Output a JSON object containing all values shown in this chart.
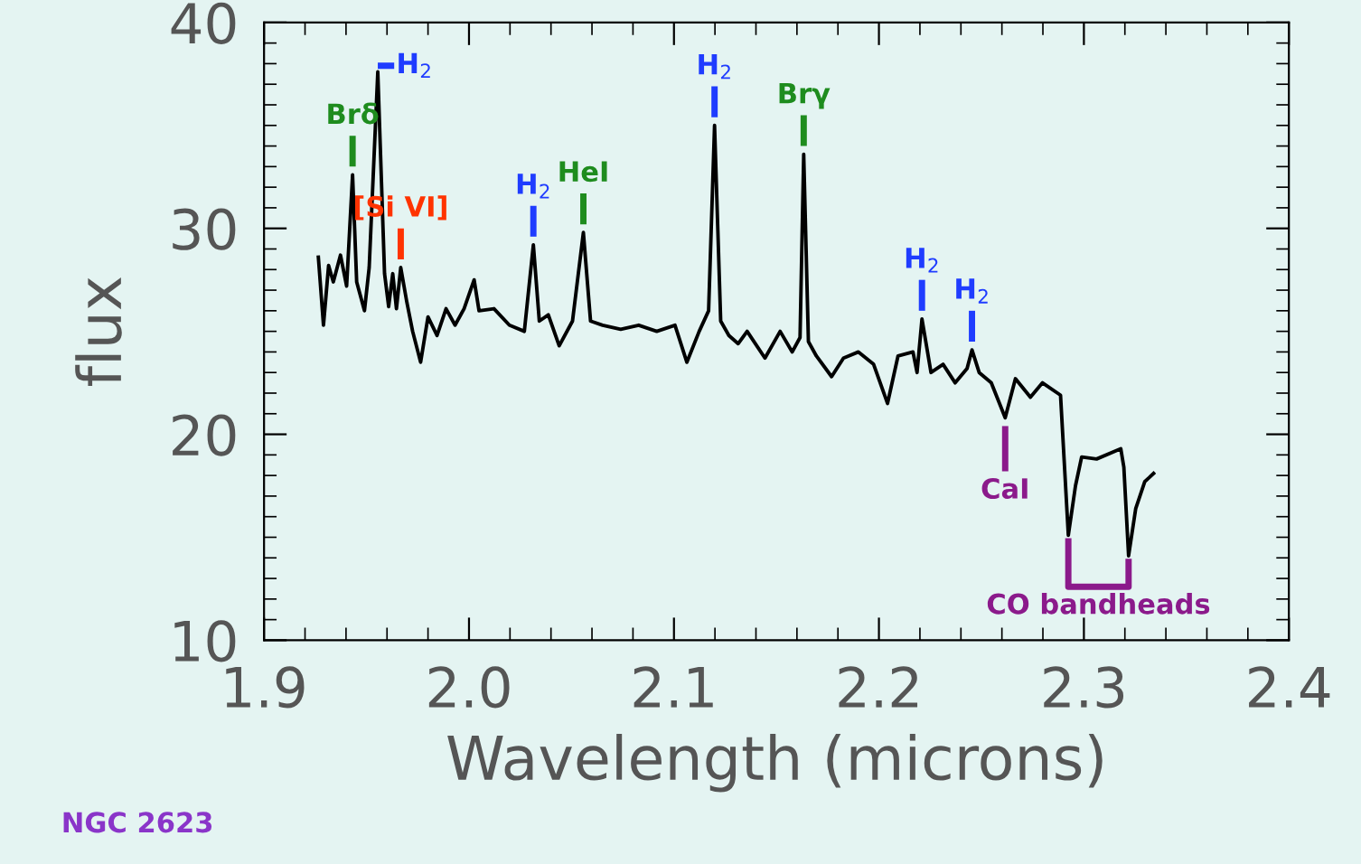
{
  "chart_data": {
    "type": "line",
    "xlabel": "Wavelength (microns)",
    "ylabel": "flux",
    "xlim": [
      1.9,
      2.4
    ],
    "xticks": [
      {
        "value": 1.9,
        "label": "1.9"
      },
      {
        "value": 2.0,
        "label": "2.0"
      },
      {
        "value": 2.1,
        "label": "2.1"
      },
      {
        "value": 2.2,
        "label": "2.2"
      },
      {
        "value": 2.3,
        "label": "2.3"
      },
      {
        "value": 2.4,
        "label": "2.4"
      }
    ],
    "ylim": [
      10,
      40
    ],
    "yticks": [
      10,
      20,
      30,
      40
    ],
    "grid": false,
    "legend": false,
    "marker": "none",
    "line_style": "solid",
    "series": [
      {
        "color": "#000000",
        "x": [
          1.9265,
          1.929,
          1.9315,
          1.9338,
          1.9373,
          1.9403,
          1.9432,
          1.9452,
          1.949,
          1.9513,
          1.9555,
          1.9588,
          1.9608,
          1.9628,
          1.9646,
          1.9667,
          1.9697,
          1.9725,
          1.9764,
          1.98,
          1.9844,
          1.9888,
          1.9932,
          1.9976,
          2.0025,
          2.0049,
          2.0122,
          2.0197,
          2.027,
          2.0314,
          2.0343,
          2.0387,
          2.044,
          2.0505,
          2.0558,
          2.0593,
          2.0652,
          2.074,
          2.0828,
          2.0916,
          2.1005,
          2.1063,
          2.1123,
          2.1169,
          2.1198,
          2.1228,
          2.1268,
          2.1313,
          2.1357,
          2.1444,
          2.1518,
          2.1577,
          2.1615,
          2.1633,
          2.1656,
          2.1695,
          2.1769,
          2.1827,
          2.19,
          2.1974,
          2.2042,
          2.2093,
          2.2166,
          2.2186,
          2.221,
          2.2254,
          2.2313,
          2.2372,
          2.243,
          2.2454,
          2.2489,
          2.2548,
          2.2616,
          2.2666,
          2.2739,
          2.2798,
          2.2886,
          2.2924,
          2.2959,
          2.2989,
          2.3062,
          2.318,
          2.3195,
          2.3218,
          2.3253,
          2.3297,
          2.334
        ],
        "values": [
          28.6,
          25.3,
          28.2,
          27.4,
          28.7,
          27.2,
          32.6,
          27.4,
          26.0,
          28.1,
          37.6,
          27.8,
          26.2,
          27.8,
          26.1,
          28.1,
          26.4,
          25.0,
          23.5,
          25.7,
          24.8,
          26.1,
          25.3,
          26.1,
          27.5,
          26.0,
          26.1,
          25.3,
          25.0,
          29.2,
          25.5,
          25.8,
          24.3,
          25.5,
          29.8,
          25.5,
          25.3,
          25.1,
          25.3,
          25.0,
          25.3,
          23.5,
          25.0,
          26.0,
          35.0,
          25.5,
          24.8,
          24.4,
          25.0,
          23.7,
          25.0,
          24.0,
          24.7,
          33.6,
          24.5,
          23.8,
          22.8,
          23.7,
          24.0,
          23.4,
          21.5,
          23.8,
          24.0,
          23.0,
          25.6,
          23.0,
          23.4,
          22.5,
          23.2,
          24.1,
          23.0,
          22.5,
          20.8,
          22.7,
          21.8,
          22.5,
          21.9,
          15.1,
          17.5,
          18.9,
          18.8,
          19.3,
          18.4,
          14.1,
          16.4,
          17.7,
          18.1
        ]
      }
    ],
    "annotations": [
      {
        "text": "Brδ",
        "x": 1.9432,
        "y": 32.6
      },
      {
        "text": "H$_{2}$",
        "x": 1.9555,
        "y": 37.6
      },
      {
        "text": "[Si VI]",
        "x": 1.9667,
        "y": 28.1
      },
      {
        "text": "H$_{2}$",
        "x": 2.0314,
        "y": 29.2
      },
      {
        "text": "HeI",
        "x": 2.0558,
        "y": 29.8
      },
      {
        "text": "H$_{2}$",
        "x": 2.1198,
        "y": 35.0
      },
      {
        "text": "Brγ",
        "x": 2.1633,
        "y": 33.6
      },
      {
        "text": "H$_{2}$",
        "x": 2.221,
        "y": 25.6
      },
      {
        "text": "H$_{2}$",
        "x": 2.2454,
        "y": 24.1
      },
      {
        "text": "CaI",
        "x": 2.2616,
        "y": 20.8
      },
      {
        "text": "CO bandheads",
        "x": 2.2924,
        "y": 15.1
      },
      "NGC 2623"
    ]
  }
}
